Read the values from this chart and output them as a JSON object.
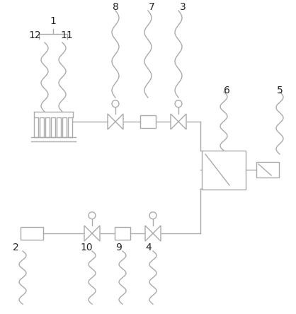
{
  "background": "#ffffff",
  "line_color": "#aaaaaa",
  "label_color": "#222222",
  "line_width": 1.0,
  "fig_width": 4.18,
  "fig_height": 4.44,
  "dpi": 100
}
